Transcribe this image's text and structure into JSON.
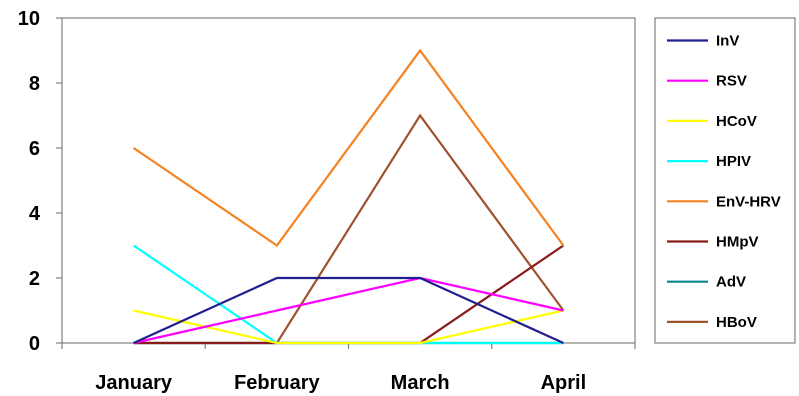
{
  "chart_data": {
    "type": "line",
    "title": "",
    "xlabel": "",
    "ylabel": "",
    "categories": [
      "January",
      "February",
      "March",
      "April"
    ],
    "ylim": [
      0,
      10
    ],
    "yticks": [
      0,
      2,
      4,
      6,
      8,
      10
    ],
    "grid": false,
    "legend_position": "right",
    "series": [
      {
        "name": "InV",
        "color": "#1f1f8f",
        "values": [
          0,
          2,
          2,
          0
        ]
      },
      {
        "name": "RSV",
        "color": "#ff00ff",
        "values": [
          0,
          1,
          2,
          1
        ]
      },
      {
        "name": "HCoV",
        "color": "#ffff00",
        "values": [
          1,
          0,
          0,
          1
        ]
      },
      {
        "name": "HPIV",
        "color": "#00ffff",
        "values": [
          3,
          0,
          0,
          0
        ]
      },
      {
        "name": "EnV-HRV",
        "color": "#f5821f",
        "values": [
          6,
          3,
          9,
          3
        ]
      },
      {
        "name": "HMpV",
        "color": "#8b1a1a",
        "values": [
          0,
          0,
          0,
          3
        ]
      },
      {
        "name": "AdV",
        "color": "#008b8b",
        "values": [
          0,
          0,
          0,
          0
        ]
      },
      {
        "name": "HBoV",
        "color": "#a0522d",
        "values": [
          0,
          0,
          7,
          1
        ]
      }
    ]
  }
}
